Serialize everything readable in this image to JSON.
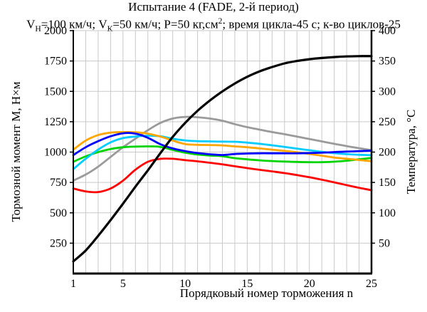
{
  "title": "Испытание 4 (FADE, 2-й период)",
  "subtitle": {
    "p1": "V",
    "sub1": "Н",
    "p2": "=100 км/ч; V",
    "sub2": "К",
    "p3": "=50 км/ч; Р=50 кг,см",
    "sup1": "2",
    "p4": "; время цикла-45 с; к-во циклов-25"
  },
  "chart_data": {
    "type": "line",
    "title": "Испытание 4 (FADE, 2-й период)",
    "subtitle_plain": "Vн=100 км/ч; Vк=50 км/ч; Р=50 кг,см2; время цикла-45 с; к-во циклов-25",
    "xlabel": "Порядковый номер торможения n",
    "x_range": [
      1,
      25
    ],
    "x_ticks": [
      1,
      5,
      10,
      15,
      20,
      25
    ],
    "grid": {
      "vertical_step": 1,
      "horizontal_step": 250,
      "color": "#c9c9c9",
      "on": true
    },
    "legend": "none",
    "left_axis": {
      "label": "Тормозной момент М, Н×м",
      "range": [
        0,
        2000
      ],
      "ticks": [
        250,
        500,
        750,
        1000,
        1250,
        1500,
        1750,
        2000
      ]
    },
    "right_axis": {
      "label": "Температура, °C",
      "range": [
        0,
        400
      ],
      "ticks": [
        50,
        100,
        150,
        200,
        250,
        300,
        350,
        400
      ]
    },
    "x": [
      1,
      2,
      3,
      4,
      5,
      6,
      7,
      8,
      9,
      10,
      11,
      12,
      13,
      14,
      15,
      16,
      17,
      18,
      19,
      20,
      21,
      22,
      23,
      24,
      25
    ],
    "series": [
      {
        "name": "moment-gray",
        "color": "#9a9a9a",
        "axis": "left",
        "values": [
          765,
          815,
          880,
          960,
          1040,
          1110,
          1180,
          1240,
          1276,
          1290,
          1287,
          1276,
          1258,
          1230,
          1205,
          1185,
          1165,
          1147,
          1128,
          1108,
          1088,
          1068,
          1049,
          1032,
          1016
        ]
      },
      {
        "name": "moment-red",
        "color": "#ff0000",
        "axis": "left",
        "values": [
          700,
          676,
          671,
          700,
          765,
          855,
          920,
          944,
          945,
          934,
          924,
          912,
          899,
          883,
          868,
          854,
          841,
          827,
          811,
          793,
          773,
          751,
          728,
          706,
          686
        ]
      },
      {
        "name": "moment-green",
        "color": "#00d400",
        "axis": "left",
        "values": [
          920,
          965,
          1000,
          1025,
          1040,
          1045,
          1047,
          1043,
          1018,
          995,
          980,
          972,
          966,
          950,
          940,
          932,
          926,
          922,
          919,
          917,
          917,
          921,
          929,
          940,
          952
        ]
      },
      {
        "name": "moment-cyan",
        "color": "#00ccff",
        "axis": "left",
        "values": [
          860,
          945,
          1020,
          1080,
          1115,
          1128,
          1135,
          1130,
          1110,
          1096,
          1090,
          1088,
          1086,
          1085,
          1078,
          1068,
          1056,
          1043,
          1029,
          1015,
          1002,
          991,
          983,
          978,
          974
        ]
      },
      {
        "name": "moment-orange",
        "color": "#ffa500",
        "axis": "left",
        "values": [
          1020,
          1095,
          1140,
          1160,
          1165,
          1163,
          1152,
          1128,
          1095,
          1066,
          1060,
          1058,
          1055,
          1047,
          1040,
          1030,
          1020,
          1010,
          998,
          985,
          970,
          955,
          945,
          935,
          925
        ]
      },
      {
        "name": "moment-blue",
        "color": "#0000ff",
        "axis": "left",
        "values": [
          975,
          1040,
          1090,
          1130,
          1155,
          1152,
          1118,
          1065,
          1030,
          1008,
          992,
          982,
          976,
          984,
          988,
          990,
          990,
          990,
          990,
          992,
          995,
          1000,
          1004,
          1008,
          1012
        ]
      },
      {
        "name": "temperature-black",
        "color": "#000000",
        "axis": "right",
        "values": [
          20,
          38,
          62,
          88,
          115,
          143,
          170,
          198,
          225,
          248,
          268,
          285,
          300,
          313,
          324,
          333,
          340,
          346,
          350,
          353,
          355,
          356.5,
          357.5,
          358,
          358
        ]
      }
    ]
  }
}
